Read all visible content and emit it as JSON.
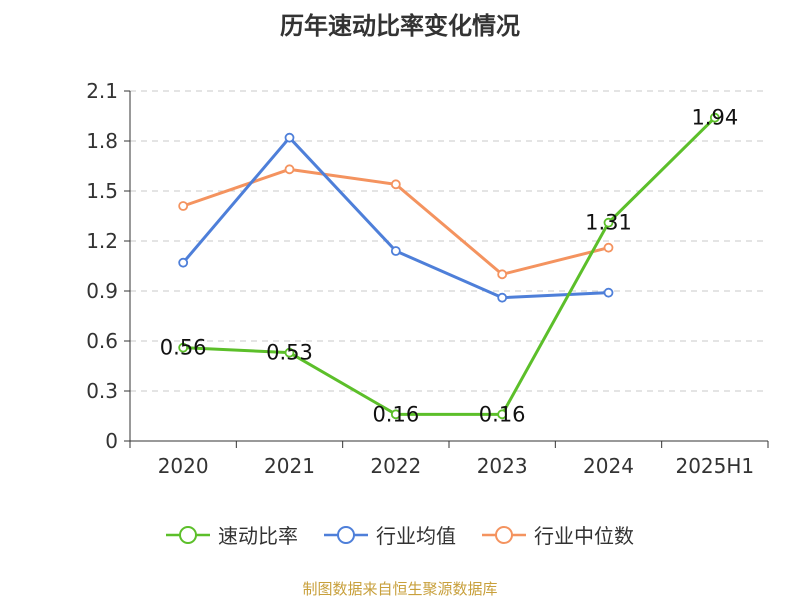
{
  "title": "历年速动比率变化情况",
  "source": "制图数据来自恒生聚源数据库",
  "chart_data": {
    "type": "line",
    "title": "历年速动比率变化情况",
    "categories": [
      "2020",
      "2021",
      "2022",
      "2023",
      "2024",
      "2025H1"
    ],
    "ylim": [
      0,
      2.1
    ],
    "yticks": [
      "0",
      "0.3",
      "0.6",
      "0.9",
      "1.2",
      "1.5",
      "1.8",
      "2.1"
    ],
    "grid": true,
    "legend_position": "bottom",
    "series": [
      {
        "name": "速动比率",
        "color": "#5cbf2a",
        "values": [
          0.56,
          0.53,
          0.16,
          0.16,
          1.31,
          1.94
        ],
        "labels": [
          "0.56",
          "0.53",
          "0.16",
          "0.16",
          "1.31",
          "1.94"
        ]
      },
      {
        "name": "行业均值",
        "color": "#4e7fd9",
        "values": [
          1.07,
          1.82,
          1.14,
          0.86,
          0.89,
          null
        ],
        "labels": null
      },
      {
        "name": "行业中位数",
        "color": "#f4935f",
        "values": [
          1.41,
          1.63,
          1.54,
          1.0,
          1.16,
          null
        ],
        "labels": null
      }
    ]
  }
}
